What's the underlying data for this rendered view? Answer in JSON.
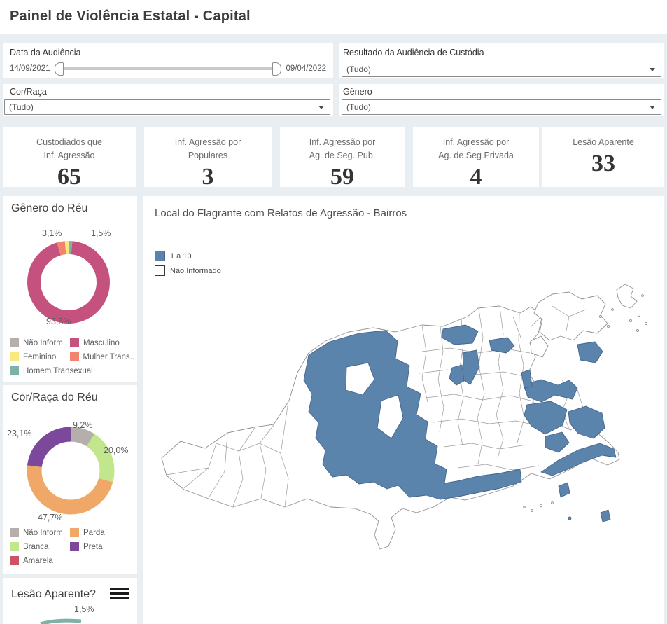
{
  "header": {
    "title": "Painel de Violência Estatal - Capital"
  },
  "filters": {
    "date": {
      "label": "Data da Audiência",
      "start": "14/09/2021",
      "end": "09/04/2022"
    },
    "resultado": {
      "label": "Resultado da Audiência de Custódia",
      "value": "(Tudo)"
    },
    "cor_raca": {
      "label": "Cor/Raça",
      "value": "(Tudo)"
    },
    "genero": {
      "label": "Gênero",
      "value": "(Tudo)"
    }
  },
  "kpis": [
    {
      "lines": [
        "Custodiados que",
        "Inf. Agressão"
      ],
      "value": "65"
    },
    {
      "lines": [
        "Inf. Agressão por",
        "Populares"
      ],
      "value": "3"
    },
    {
      "lines": [
        "Inf. Agressão por",
        "Ag. de Seg. Pub."
      ],
      "value": "59"
    },
    {
      "lines": [
        "Inf. Agressão por",
        "Ag. de Seg Privada"
      ],
      "value": "4"
    },
    {
      "lines": [
        "Lesão Aparente"
      ],
      "value": "33"
    }
  ],
  "chart_data": [
    {
      "id": "genero_reu",
      "type": "pie",
      "title": "Gênero do Réu",
      "slices": [
        {
          "label": "Homem Transexual",
          "value": 1.5,
          "color": "#7fb2a7",
          "display": "1,5%"
        },
        {
          "label": "Masculino",
          "value": 93.8,
          "color": "#c5527e",
          "display": "93,8%"
        },
        {
          "label": "Mulher Transexual",
          "value": 3.1,
          "color": "#f3826f",
          "display": "3,1%"
        },
        {
          "label": "Feminino",
          "value": 1.6,
          "color": "#f8e97f",
          "display": ""
        }
      ],
      "callouts": {
        "top_left": "3,1%",
        "top_right": "1,5%",
        "bottom": "93,8%"
      },
      "legend": [
        {
          "label": "Não Inform",
          "color": "#b5aeab"
        },
        {
          "label": "Masculino",
          "color": "#c5527e"
        },
        {
          "label": "Feminino",
          "color": "#f8e97f"
        },
        {
          "label": "Mulher Trans..",
          "color": "#f3826f"
        },
        {
          "label": "Homem Transexual",
          "color": "#7fb2a7"
        }
      ]
    },
    {
      "id": "cor_raca_reu",
      "type": "pie",
      "title": "Cor/Raça do Réu",
      "slices": [
        {
          "label": "Não Inform",
          "value": 9.2,
          "color": "#b5aeab",
          "display": "9,2%"
        },
        {
          "label": "Branca",
          "value": 20.0,
          "color": "#c2e68c",
          "display": "20,0%"
        },
        {
          "label": "Parda",
          "value": 47.7,
          "color": "#f0a868",
          "display": "47,7%"
        },
        {
          "label": "Preta",
          "value": 23.1,
          "color": "#7c489c",
          "display": "23,1%"
        },
        {
          "label": "Amarela",
          "value": 0,
          "color": "#cc5264",
          "display": ""
        }
      ],
      "callouts": {
        "top_right": "9,2%",
        "right": "20,0%",
        "bottom_left": "47,7%",
        "top_left": "23,1%"
      },
      "legend": [
        {
          "label": "Não Inform",
          "color": "#b5aeab"
        },
        {
          "label": "Parda",
          "color": "#f0a868"
        },
        {
          "label": "Branca",
          "color": "#c2e68c"
        },
        {
          "label": "Preta",
          "color": "#7c489c"
        },
        {
          "label": "Amarela",
          "color": "#cc5264"
        }
      ]
    },
    {
      "id": "lesao_aparente",
      "type": "pie",
      "title": "Lesão Aparente?",
      "partial_visible": true,
      "visible_callout": "1,5%",
      "visible_slice_color": "#7fb2a7"
    },
    {
      "id": "mapa_bairros",
      "type": "heatmap",
      "title": "Local do Flagrante com Relatos de Agressão - Bairros",
      "legend": [
        {
          "label": "1 a 10",
          "color": "#5b84ad"
        },
        {
          "label": "Não Informado",
          "color": "#ffffff"
        }
      ]
    }
  ]
}
